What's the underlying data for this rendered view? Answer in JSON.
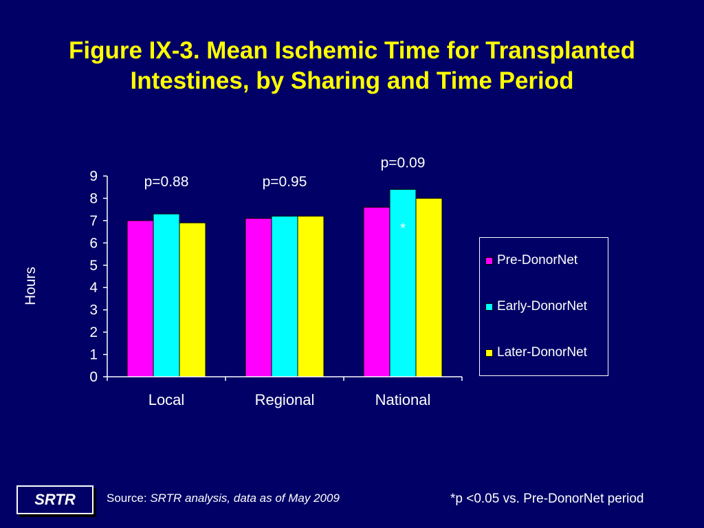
{
  "title": {
    "line1": "Figure IX-3. Mean Ischemic Time for Transplanted",
    "line2": "Intestines, by Sharing and Time Period"
  },
  "chart_data": {
    "type": "bar",
    "categories": [
      "Local",
      "Regional",
      "National"
    ],
    "series": [
      {
        "name": "Pre-DonorNet",
        "values": [
          7.0,
          7.1,
          7.6
        ],
        "color": "#FF00FF"
      },
      {
        "name": "Early-DonorNet",
        "values": [
          7.3,
          7.2,
          8.4
        ],
        "color": "#00FFFF"
      },
      {
        "name": "Later-DonorNet",
        "values": [
          6.9,
          7.2,
          8.0
        ],
        "color": "#FFFF00"
      }
    ],
    "ylabel": "Hours",
    "xlabel": "",
    "ylim": [
      0,
      9
    ],
    "yticks": [
      "0",
      "1",
      "2",
      "3",
      "4",
      "5",
      "6",
      "7",
      "8",
      "9"
    ],
    "annotations": [
      {
        "category": "Local",
        "text": "p=0.88"
      },
      {
        "category": "Regional",
        "text": "p=0.95"
      },
      {
        "category": "National",
        "text": "p=0.09"
      }
    ],
    "significance_marks": [
      {
        "category": "National",
        "series": "Early-DonorNet",
        "text": "*"
      }
    ],
    "grid": false,
    "legend_position": "right"
  },
  "footer": {
    "logo_text": "SRTR",
    "source_label": "Source: ",
    "source_value": "SRTR analysis, data as of May 2009",
    "footnote": "*p <0.05 vs. Pre-DonorNet period"
  }
}
